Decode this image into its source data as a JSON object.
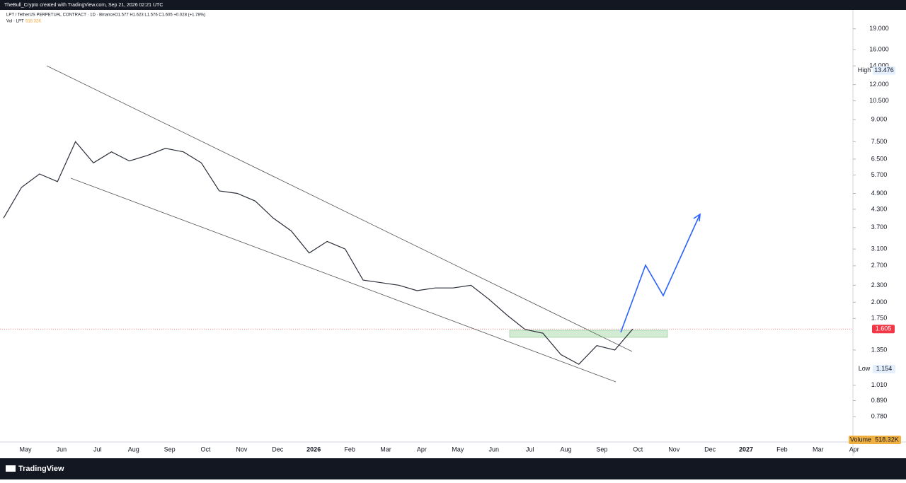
{
  "header": {
    "credit": "TheBull_Crypto created with TradingView.com, Sep 21, 2026 02:21 UTC"
  },
  "chart_data": {
    "type": "line",
    "title": "LPT / TetherUS PERPETUAL CONTRACT · 1D · Binance",
    "ohlc": "O1.577 H1.623 L1.576 C1.605 +0.028 (+1.78%)",
    "volume_legend": "Vol · LPT",
    "volume_legend_value": "518.32K",
    "log_scale": true,
    "ylim": [
      0.633,
      22.2
    ],
    "yticks": [
      {
        "value": 19,
        "label": "19.000"
      },
      {
        "value": 16,
        "label": "16.000"
      },
      {
        "value": 14,
        "label": "14.000"
      },
      {
        "value": 12,
        "label": "12.000"
      },
      {
        "value": 10.5,
        "label": "10.500"
      },
      {
        "value": 9,
        "label": "9.000"
      },
      {
        "value": 7.5,
        "label": "7.500"
      },
      {
        "value": 6.5,
        "label": "6.500"
      },
      {
        "value": 5.7,
        "label": "5.700"
      },
      {
        "value": 4.9,
        "label": "4.900"
      },
      {
        "value": 4.3,
        "label": "4.300"
      },
      {
        "value": 3.7,
        "label": "3.700"
      },
      {
        "value": 3.1,
        "label": "3.100"
      },
      {
        "value": 2.7,
        "label": "2.700"
      },
      {
        "value": 2.3,
        "label": "2.300"
      },
      {
        "value": 2,
        "label": "2.000"
      },
      {
        "value": 1.75,
        "label": "1.750"
      },
      {
        "value": 1.35,
        "label": "1.350"
      },
      {
        "value": 1.01,
        "label": "1.010"
      },
      {
        "value": 0.89,
        "label": "0.890"
      },
      {
        "value": 0.78,
        "label": "0.780"
      }
    ],
    "time_labels": [
      "May",
      "Jun",
      "Jul",
      "Aug",
      "Sep",
      "Oct",
      "Nov",
      "Dec",
      "2026",
      "Feb",
      "Mar",
      "Apr",
      "May",
      "Jun",
      "Jul",
      "Aug",
      "Sep",
      "Oct",
      "Nov",
      "Dec",
      "2027",
      "Feb",
      "Mar",
      "Apr"
    ],
    "series": [
      {
        "name": "LPT",
        "color": "#2a2e39",
        "values": [
          4.0,
          5.15,
          5.75,
          5.4,
          7.5,
          6.3,
          6.9,
          6.4,
          6.7,
          7.1,
          6.9,
          6.3,
          5.0,
          4.9,
          4.6,
          4.0,
          3.6,
          3.0,
          3.3,
          3.1,
          2.4,
          2.35,
          2.3,
          2.2,
          2.25,
          2.25,
          2.3,
          2.05,
          1.8,
          1.6,
          1.55,
          1.3,
          1.2,
          1.4,
          1.35,
          1.605
        ]
      }
    ],
    "high_label": "High",
    "high": 13.476,
    "low_label": "Low",
    "low": 1.154,
    "last": 1.605,
    "volume_label": "Volume",
    "volume_value": "518.32K"
  },
  "footer": {
    "brand": "TradingView"
  }
}
